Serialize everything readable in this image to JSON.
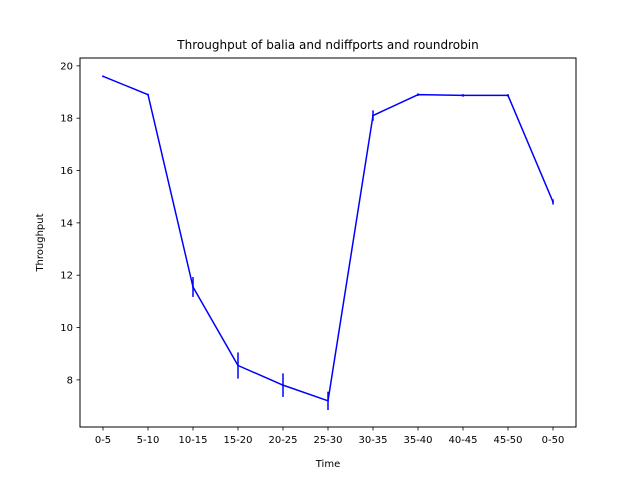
{
  "chart_data": {
    "type": "line",
    "title": "Throughput of balia and ndiffports and roundrobin",
    "xlabel": "Time",
    "ylabel": "Throughput",
    "categories": [
      "0-5",
      "5-10",
      "10-15",
      "15-20",
      "20-25",
      "25-30",
      "30-35",
      "35-40",
      "40-45",
      "45-50",
      "0-50"
    ],
    "series": [
      {
        "values": [
          19.6,
          18.9,
          11.55,
          8.55,
          7.8,
          7.2,
          18.1,
          18.9,
          18.87,
          18.87,
          14.8
        ],
        "errors": [
          0.02,
          0.03,
          0.38,
          0.5,
          0.45,
          0.35,
          0.2,
          0.05,
          0.05,
          0.05,
          0.1
        ],
        "color": "#0000ff"
      }
    ],
    "ylim": [
      6.2,
      20.3
    ],
    "yticks": [
      8,
      10,
      12,
      14,
      16,
      18,
      20
    ],
    "grid": false
  }
}
